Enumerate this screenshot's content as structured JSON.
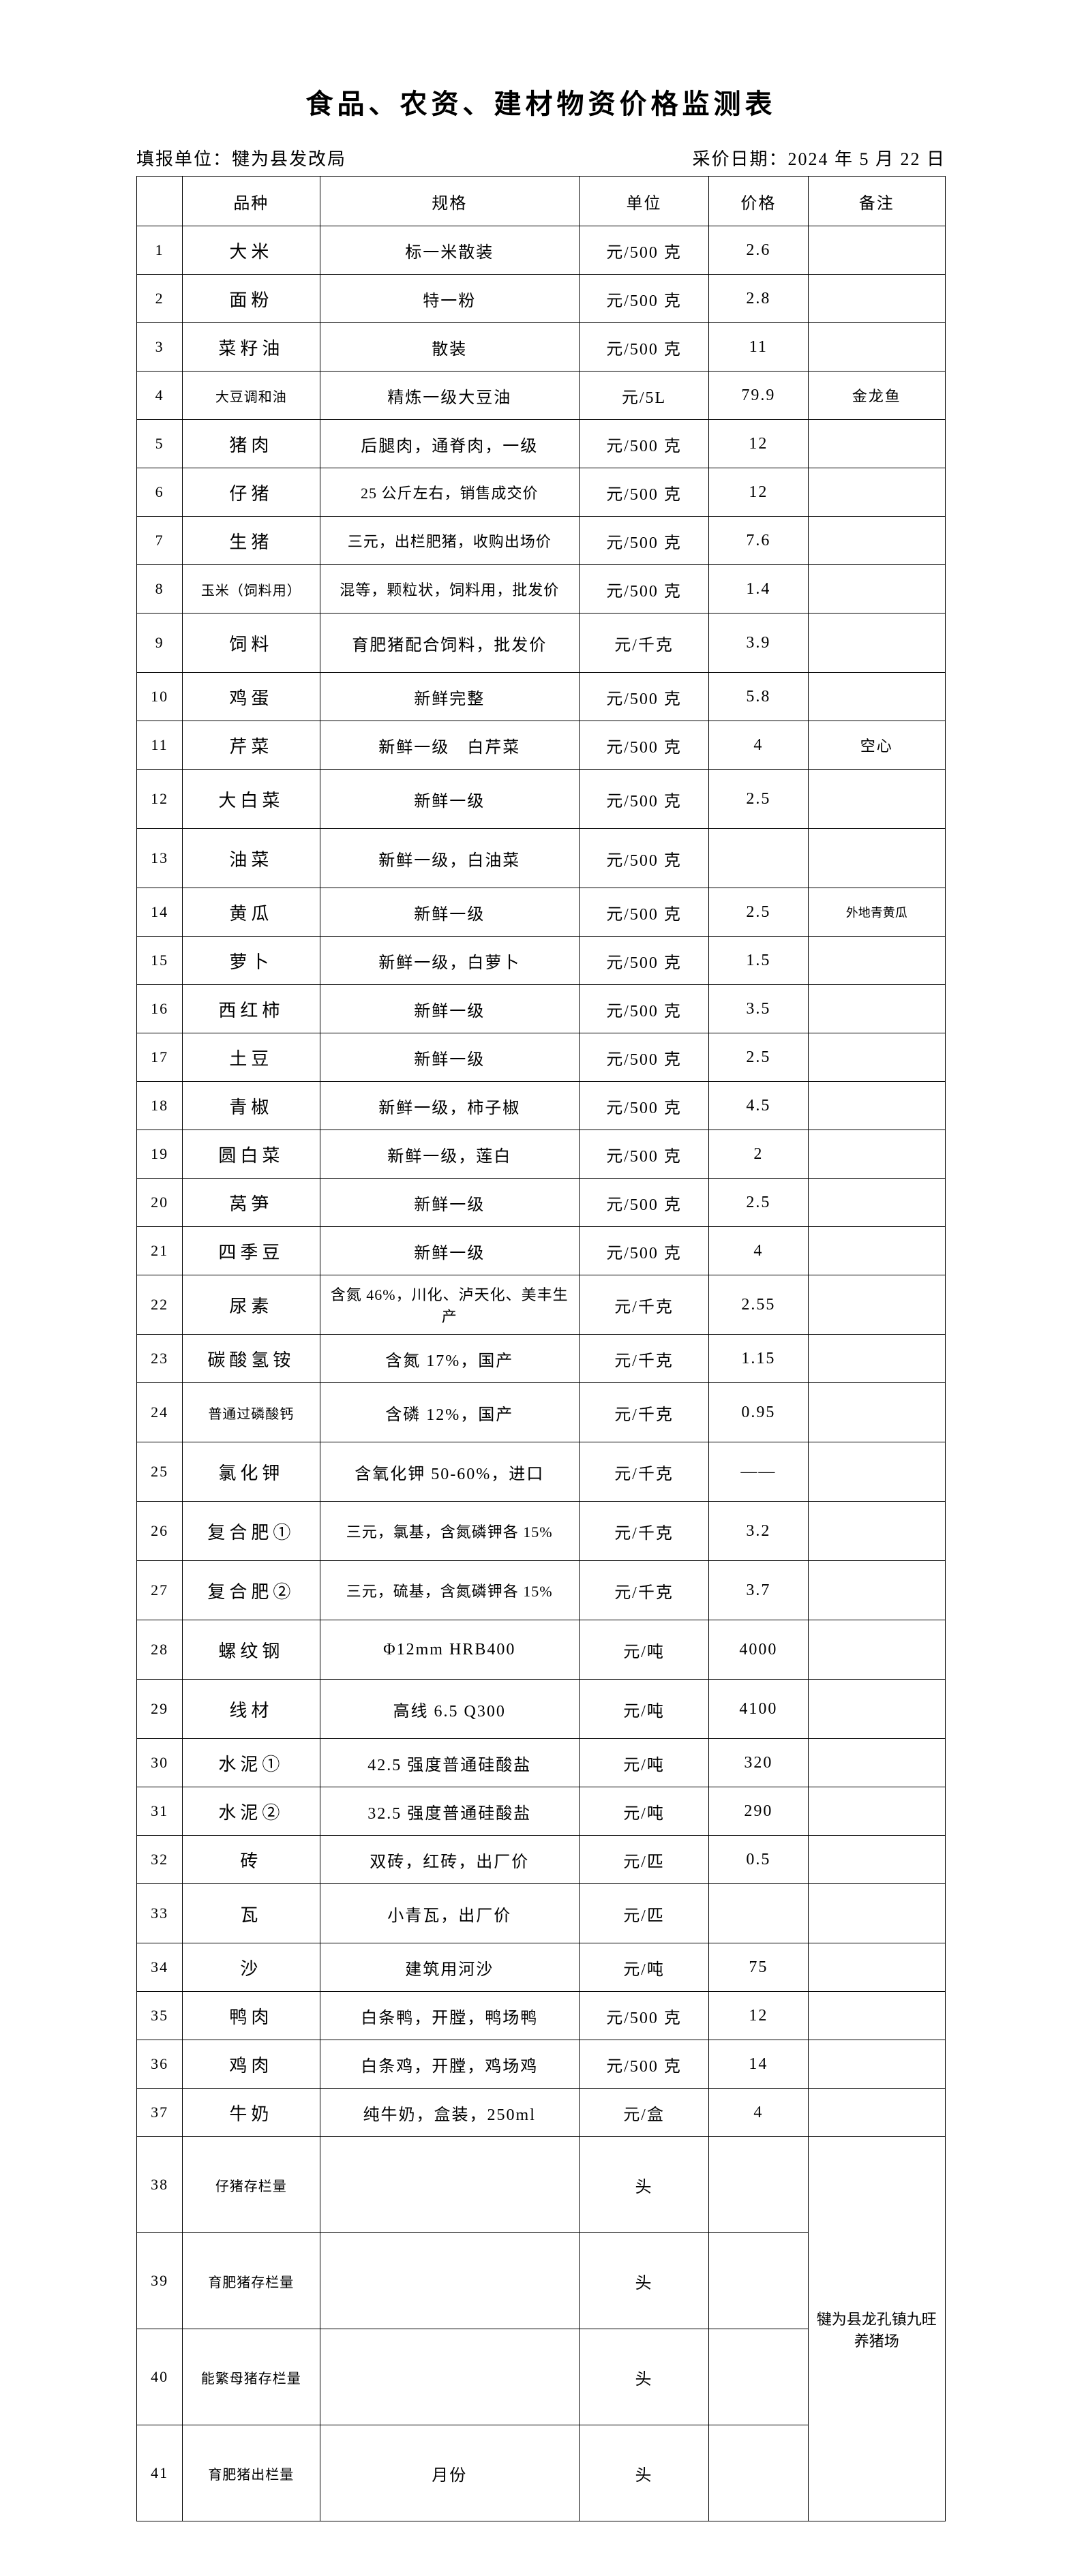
{
  "title": "食品、农资、建材物资价格监测表",
  "reporter_label": "填报单位：犍为县发改局",
  "date_label": "采价日期：2024 年 5 月 22 日",
  "columns": [
    "",
    "品种",
    "规格",
    "单位",
    "价格",
    "备注"
  ],
  "merged_note": "犍为县龙孔镇九旺养猪场",
  "rows": [
    {
      "idx": "1",
      "name": "大米",
      "spec": "标一米散装",
      "unit": "元/500 克",
      "price": "2.6",
      "note": "",
      "h": "h-normal"
    },
    {
      "idx": "2",
      "name": "面粉",
      "spec": "特一粉",
      "unit": "元/500 克",
      "price": "2.8",
      "note": "",
      "h": "h-normal"
    },
    {
      "idx": "3",
      "name": "菜籽油",
      "spec": "散装",
      "unit": "元/500 克",
      "price": "11",
      "note": "",
      "h": "h-normal"
    },
    {
      "idx": "4",
      "name": "大豆调和油",
      "spec": "精炼一级大豆油",
      "unit": "元/5L",
      "price": "79.9",
      "note": "金龙鱼",
      "h": "h-normal",
      "name_small": true
    },
    {
      "idx": "5",
      "name": "猪肉",
      "spec": "后腿肉，通脊肉，一级",
      "unit": "元/500 克",
      "price": "12",
      "note": "",
      "h": "h-normal"
    },
    {
      "idx": "6",
      "name": "仔猪",
      "spec": "25 公斤左右，销售成交价",
      "unit": "元/500 克",
      "price": "12",
      "note": "",
      "h": "h-normal",
      "spec_sm": true
    },
    {
      "idx": "7",
      "name": "生猪",
      "spec": "三元，出栏肥猪，收购出场价",
      "unit": "元/500 克",
      "price": "7.6",
      "note": "",
      "h": "h-normal",
      "spec_sm": true
    },
    {
      "idx": "8",
      "name": "玉米（饲料用）",
      "spec": "混等，颗粒状，饲料用，批发价",
      "unit": "元/500 克",
      "price": "1.4",
      "note": "",
      "h": "h-normal",
      "name_small": true,
      "spec_sm": true
    },
    {
      "idx": "9",
      "name": "饲料",
      "spec": "育肥猪配合饲料，批发价",
      "unit": "元/千克",
      "price": "3.9",
      "note": "",
      "h": "h-tall"
    },
    {
      "idx": "10",
      "name": "鸡蛋",
      "spec": "新鲜完整",
      "unit": "元/500 克",
      "price": "5.8",
      "note": "",
      "h": "h-normal"
    },
    {
      "idx": "11",
      "name": "芹菜",
      "spec": "新鲜一级　白芹菜",
      "unit": "元/500 克",
      "price": "4",
      "note": "空心",
      "h": "h-normal"
    },
    {
      "idx": "12",
      "name": "大白菜",
      "spec": "新鲜一级",
      "unit": "元/500 克",
      "price": "2.5",
      "note": "",
      "h": "h-tall"
    },
    {
      "idx": "13",
      "name": "油菜",
      "spec": "新鲜一级，白油菜",
      "unit": "元/500 克",
      "price": "",
      "note": "",
      "h": "h-tall"
    },
    {
      "idx": "14",
      "name": "黄瓜",
      "spec": "新鲜一级",
      "unit": "元/500 克",
      "price": "2.5",
      "note": "外地青黄瓜",
      "h": "h-normal",
      "note_sm": true
    },
    {
      "idx": "15",
      "name": "萝卜",
      "spec": "新鲜一级，白萝卜",
      "unit": "元/500 克",
      "price": "1.5",
      "note": "",
      "h": "h-normal"
    },
    {
      "idx": "16",
      "name": "西红柿",
      "spec": "新鲜一级",
      "unit": "元/500 克",
      "price": "3.5",
      "note": "",
      "h": "h-normal"
    },
    {
      "idx": "17",
      "name": "土豆",
      "spec": "新鲜一级",
      "unit": "元/500 克",
      "price": "2.5",
      "note": "",
      "h": "h-normal"
    },
    {
      "idx": "18",
      "name": "青椒",
      "spec": "新鲜一级，柿子椒",
      "unit": "元/500 克",
      "price": "4.5",
      "note": "",
      "h": "h-normal"
    },
    {
      "idx": "19",
      "name": "圆白菜",
      "spec": "新鲜一级，莲白",
      "unit": "元/500 克",
      "price": "2",
      "note": "",
      "h": "h-normal"
    },
    {
      "idx": "20",
      "name": "莴笋",
      "spec": "新鲜一级",
      "unit": "元/500 克",
      "price": "2.5",
      "note": "",
      "h": "h-normal"
    },
    {
      "idx": "21",
      "name": "四季豆",
      "spec": "新鲜一级",
      "unit": "元/500 克",
      "price": "4",
      "note": "",
      "h": "h-normal"
    },
    {
      "idx": "22",
      "name": "尿素",
      "spec": "含氮 46%，川化、泸天化、美丰生产",
      "unit": "元/千克",
      "price": "2.55",
      "note": "",
      "h": "h-tall",
      "spec_sm": true
    },
    {
      "idx": "23",
      "name": "碳酸氢铵",
      "spec": "含氮 17%，国产",
      "unit": "元/千克",
      "price": "1.15",
      "note": "",
      "h": "h-normal"
    },
    {
      "idx": "24",
      "name": "普通过磷酸钙",
      "spec": "含磷 12%，国产",
      "unit": "元/千克",
      "price": "0.95",
      "note": "",
      "h": "h-tall",
      "name_small": true
    },
    {
      "idx": "25",
      "name": "氯化钾",
      "spec": "含氧化钾 50-60%，进口",
      "unit": "元/千克",
      "price": "——",
      "note": "",
      "h": "h-tall"
    },
    {
      "idx": "26",
      "name": "复合肥①",
      "spec": "三元，氯基，含氮磷钾各 15%",
      "unit": "元/千克",
      "price": "3.2",
      "note": "",
      "h": "h-tall",
      "spec_sm": true
    },
    {
      "idx": "27",
      "name": "复合肥②",
      "spec": "三元，硫基，含氮磷钾各 15%",
      "unit": "元/千克",
      "price": "3.7",
      "note": "",
      "h": "h-tall",
      "spec_sm": true
    },
    {
      "idx": "28",
      "name": "螺纹钢",
      "spec": "Φ12mm HRB400",
      "unit": "元/吨",
      "price": "4000",
      "note": "",
      "h": "h-tall"
    },
    {
      "idx": "29",
      "name": "线材",
      "spec": "高线 6.5 Q300",
      "unit": "元/吨",
      "price": "4100",
      "note": "",
      "h": "h-tall"
    },
    {
      "idx": "30",
      "name": "水泥①",
      "spec": "42.5 强度普通硅酸盐",
      "unit": "元/吨",
      "price": "320",
      "note": "",
      "h": "h-normal"
    },
    {
      "idx": "31",
      "name": "水泥②",
      "spec": "32.5 强度普通硅酸盐",
      "unit": "元/吨",
      "price": "290",
      "note": "",
      "h": "h-normal"
    },
    {
      "idx": "32",
      "name": "砖",
      "spec": "双砖，红砖，出厂价",
      "unit": "元/匹",
      "price": "0.5",
      "note": "",
      "h": "h-normal"
    },
    {
      "idx": "33",
      "name": "瓦",
      "spec": "小青瓦，出厂价",
      "unit": "元/匹",
      "price": "",
      "note": "",
      "h": "h-tall"
    },
    {
      "idx": "34",
      "name": "沙",
      "spec": "建筑用河沙",
      "unit": "元/吨",
      "price": "75",
      "note": "",
      "h": "h-normal"
    },
    {
      "idx": "35",
      "name": "鸭肉",
      "spec": "白条鸭，开膛，鸭场鸭",
      "unit": "元/500 克",
      "price": "12",
      "note": "",
      "h": "h-normal"
    },
    {
      "idx": "36",
      "name": "鸡肉",
      "spec": "白条鸡，开膛，鸡场鸡",
      "unit": "元/500 克",
      "price": "14",
      "note": "",
      "h": "h-normal"
    },
    {
      "idx": "37",
      "name": "牛奶",
      "spec": "纯牛奶，盒装，250ml",
      "unit": "元/盒",
      "price": "4",
      "note": "",
      "h": "h-normal"
    },
    {
      "idx": "38",
      "name": "仔猪存栏量",
      "spec": "",
      "unit": "头",
      "price": "",
      "note": "MERGE",
      "h": "h-xtall",
      "name_small": true
    },
    {
      "idx": "39",
      "name": "育肥猪存栏量",
      "spec": "",
      "unit": "头",
      "price": "",
      "note": "",
      "h": "h-xtall",
      "name_small": true
    },
    {
      "idx": "40",
      "name": "能繁母猪存栏量",
      "spec": "",
      "unit": "头",
      "price": "",
      "note": "",
      "h": "h-xtall",
      "name_small": true
    },
    {
      "idx": "41",
      "name": "育肥猪出栏量",
      "spec": "月份",
      "unit": "头",
      "price": "",
      "note": "",
      "h": "h-xtall",
      "name_small": true
    }
  ]
}
